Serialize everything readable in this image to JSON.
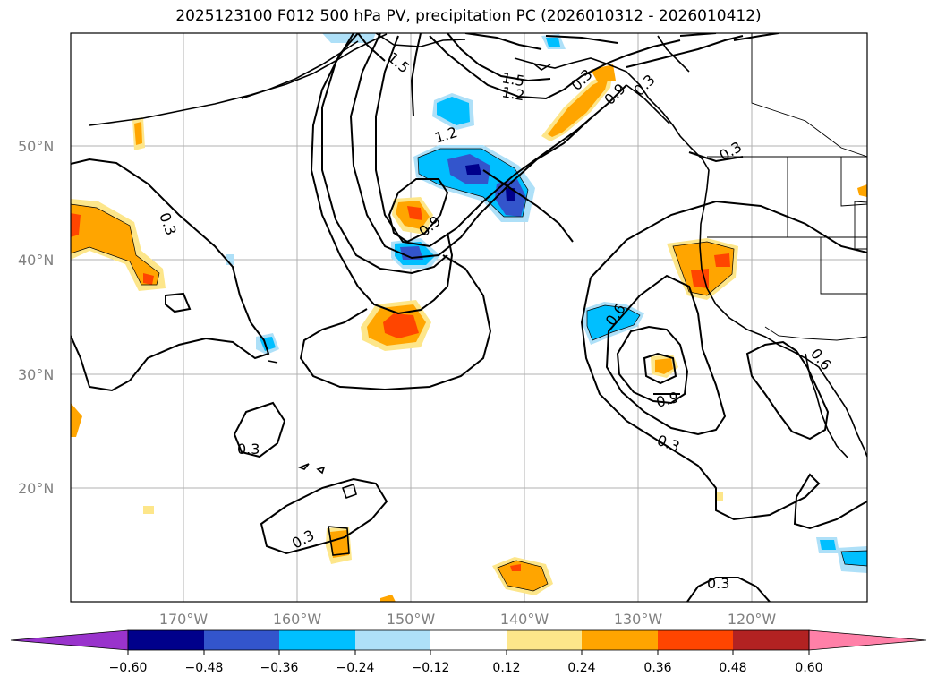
{
  "title": "2025123100 F012 500 hPa PV, precipitation PC (2026010312 - 2026010412)",
  "map": {
    "lat_labels": [
      "50°N",
      "40°N",
      "30°N",
      "20°N"
    ],
    "lon_labels": [
      "170°W",
      "160°W",
      "150°W",
      "140°W",
      "130°W",
      "120°W"
    ],
    "grid": true
  },
  "contour_labels": [
    "0.3",
    "0.3",
    "0.3",
    "0.3",
    "0.3",
    "1.5",
    "1.2",
    "1.2",
    "1.5",
    "0.9",
    "0.6",
    "0.9",
    "0.3",
    "0.6",
    "0.3",
    "0.9",
    "0.3"
  ],
  "colorbar": {
    "colors": [
      "#9933cc",
      "#00008b",
      "#3355cc",
      "#00bfff",
      "#aee0f8",
      "#ffffff",
      "#fde68a",
      "#ffa500",
      "#ff4500",
      "#b22222",
      "#ff80a8"
    ],
    "tick_labels": [
      "−0.60",
      "−0.48",
      "−0.36",
      "−0.24",
      "−0.12",
      "0.12",
      "0.24",
      "0.36",
      "0.48",
      "0.60"
    ]
  }
}
